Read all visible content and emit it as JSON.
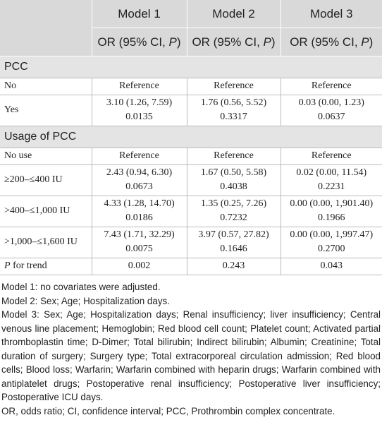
{
  "table": {
    "columns": [
      {
        "title": "Model 1",
        "sub": {
          "pre": "OR (95% CI, ",
          "em": "P",
          "post": ")"
        }
      },
      {
        "title": "Model 2",
        "sub": {
          "pre": "OR (95% CI, ",
          "em": "P",
          "post": ")"
        }
      },
      {
        "title": "Model 3",
        "sub": {
          "pre": "OR (95% CI, ",
          "em": "P",
          "post": ")"
        }
      }
    ],
    "sections": [
      {
        "title": "PCC",
        "rows": [
          {
            "label": "No",
            "cells": [
              [
                "Reference"
              ],
              [
                "Reference"
              ],
              [
                "Reference"
              ]
            ]
          },
          {
            "label": "Yes",
            "cells": [
              [
                "3.10 (1.26, 7.59)",
                "0.0135"
              ],
              [
                "1.76 (0.56, 5.52)",
                "0.3317"
              ],
              [
                "0.03 (0.00, 1.23)",
                "0.0637"
              ]
            ]
          }
        ]
      },
      {
        "title": "Usage of PCC",
        "rows": [
          {
            "label": "No use",
            "cells": [
              [
                "Reference"
              ],
              [
                "Reference"
              ],
              [
                "Reference"
              ]
            ]
          },
          {
            "label": "≥200–≤400 IU",
            "cells": [
              [
                "2.43 (0.94, 6.30)",
                "0.0673"
              ],
              [
                "1.67 (0.50, 5.58)",
                "0.4038"
              ],
              [
                "0.02 (0.00, 11.54)",
                "0.2231"
              ]
            ]
          },
          {
            "label": ">400–≤1,000 IU",
            "cells": [
              [
                "4.33 (1.28, 14.70)",
                "0.0186"
              ],
              [
                "1.35 (0.25, 7.26)",
                "0.7232"
              ],
              [
                "0.00 (0.00, 1,901.40)",
                "0.1966"
              ]
            ]
          },
          {
            "label": ">1,000–≤1,600 IU",
            "cells": [
              [
                "7.43 (1.71, 32.29)",
                "0.0075"
              ],
              [
                "3.97 (0.57, 27.82)",
                "0.1646"
              ],
              [
                "0.00 (0.00, 1,997.47)",
                "0.2700"
              ]
            ]
          }
        ]
      }
    ],
    "trend": {
      "label": {
        "em": "P",
        "post": " for trend"
      },
      "cells": [
        "0.002",
        "0.243",
        "0.043"
      ]
    }
  },
  "notes": [
    "Model 1: no covariates were adjusted.",
    "Model 2: Sex; Age; Hospitalization days.",
    "Model 3: Sex; Age; Hospitalization days; Renal insufficiency; liver insufficiency; Central venous line placement; Hemoglobin; Red blood cell count; Platelet count; Activated partial thromboplastin time; D-Dimer; Total bilirubin; Indirect bilirubin; Albumin; Creatinine; Total duration of surgery; Surgery type; Total extracorporeal circulation admission; Red blood cells; Blood loss; Warfarin; Warfarin combined with heparin drugs; Warfarin combined with antiplatelet drugs; Postoperative renal insufficiency; Postoperative liver insufficiency; Postoperative ICU days.",
    "OR, odds ratio; CI, confidence interval; PCC, Prothrombin complex concentrate."
  ]
}
